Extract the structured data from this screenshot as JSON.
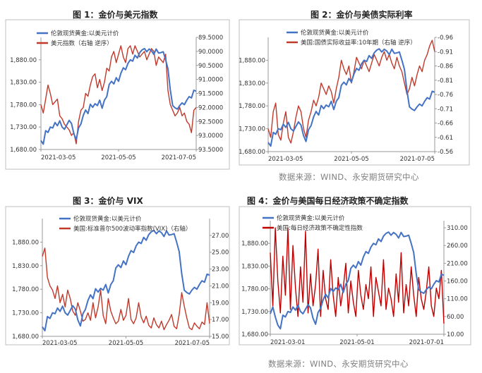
{
  "chart_data": [
    {
      "type": "line",
      "title": "图 1：金价与美元指数",
      "x_ticks": [
        "2021-03-05",
        "2021-05-05",
        "2021-07-05"
      ],
      "y_left": {
        "min": 1680,
        "max": 1930,
        "ticks": [
          "1,680.00",
          "1,730.00",
          "1,780.00",
          "1,830.00",
          "1,880.00"
        ],
        "tick_values": [
          1680,
          1730,
          1780,
          1830,
          1880
        ]
      },
      "y_right": {
        "min": 89.5,
        "max": 93.5,
        "reversed": true,
        "ticks": [
          "89.5000",
          "90.0000",
          "90.5000",
          "91.0000",
          "91.5000",
          "92.0000",
          "92.5000",
          "93.0000",
          "93.5000"
        ],
        "tick_values": [
          89.5,
          90.0,
          90.5,
          91.0,
          91.5,
          92.0,
          92.5,
          93.0,
          93.5
        ]
      },
      "legend": "top-left",
      "series": [
        {
          "name": "伦敦现货黄金:以美元计价",
          "axis": "left",
          "color": "#4472c4",
          "values": [
            1700,
            1692,
            1722,
            1718,
            1730,
            1728,
            1740,
            1733,
            1744,
            1730,
            1725,
            1735,
            1745,
            1738,
            1715,
            1702,
            1728,
            1737,
            1756,
            1768,
            1760,
            1781,
            1774,
            1782,
            1778,
            1790,
            1772,
            1790,
            1798,
            1825,
            1832,
            1826,
            1840,
            1832,
            1850,
            1862,
            1858,
            1872,
            1880,
            1877,
            1890,
            1884,
            1896,
            1902,
            1905,
            1898,
            1904,
            1900,
            1892,
            1904,
            1895,
            1896,
            1898,
            1880,
            1860,
            1813,
            1778,
            1773,
            1770,
            1778,
            1784,
            1780,
            1790,
            1798,
            1795,
            1812,
            1810
          ]
        },
        {
          "name": "美元指数（右轴 逆序）",
          "axis": "right",
          "color": "#c0392b",
          "values": [
            91.9,
            92.2,
            91.7,
            91.2,
            91.5,
            91.9,
            91.8,
            91.7,
            92.3,
            92.4,
            92.6,
            92.7,
            92.8,
            93.0,
            92.9,
            93.3,
            92.5,
            92.1,
            92.0,
            91.5,
            91.6,
            91.2,
            90.9,
            90.8,
            91.3,
            91.0,
            91.4,
            91.1,
            90.6,
            90.7,
            90.2,
            90.0,
            90.4,
            90.1,
            89.8,
            90.2,
            90.4,
            89.9,
            89.8,
            90.1,
            89.8,
            90.0,
            90.2,
            90.1,
            90.0,
            90.3,
            90.1,
            89.9,
            90.0,
            90.5,
            90.2,
            90.3,
            90.4,
            90.1,
            91.4,
            91.9,
            92.1,
            92.3,
            92.2,
            92.0,
            92.3,
            92.2,
            92.5,
            92.6,
            92.9,
            92.1,
            92.0
          ]
        }
      ]
    },
    {
      "type": "line",
      "title": "图 2：金价与美债实际利率",
      "x_ticks": [
        "2021-03-05",
        "2021-05-05",
        "2021-07-05"
      ],
      "y_left": {
        "min": 1680,
        "max": 1930,
        "ticks": [
          "1,680.00",
          "1,730.00",
          "1,780.00",
          "1,830.00",
          "1,880.00"
        ],
        "tick_values": [
          1680,
          1730,
          1780,
          1830,
          1880
        ]
      },
      "y_right": {
        "min": -0.96,
        "max": -0.56,
        "reversed": true,
        "ticks": [
          "-0.96",
          "-0.91",
          "-0.86",
          "-0.81",
          "-0.76",
          "-0.71",
          "-0.66",
          "-0.61",
          "-0.56"
        ],
        "tick_values": [
          -0.96,
          -0.91,
          -0.86,
          -0.81,
          -0.76,
          -0.71,
          -0.66,
          -0.61,
          -0.56
        ]
      },
      "legend": "top-left",
      "series": [
        {
          "name": "伦敦现货黄金:以美元计价",
          "axis": "left",
          "color": "#4472c4",
          "values": [
            1700,
            1692,
            1722,
            1718,
            1730,
            1728,
            1740,
            1733,
            1744,
            1730,
            1725,
            1735,
            1745,
            1738,
            1715,
            1702,
            1728,
            1737,
            1756,
            1768,
            1760,
            1781,
            1774,
            1782,
            1778,
            1790,
            1772,
            1790,
            1798,
            1825,
            1832,
            1826,
            1840,
            1832,
            1850,
            1862,
            1858,
            1872,
            1880,
            1877,
            1890,
            1884,
            1896,
            1902,
            1905,
            1898,
            1904,
            1900,
            1892,
            1904,
            1895,
            1896,
            1898,
            1880,
            1860,
            1813,
            1778,
            1773,
            1770,
            1778,
            1784,
            1780,
            1790,
            1798,
            1795,
            1812,
            1810
          ]
        },
        {
          "name": "美国:国债实际收益率:10年期（右轴 逆序）",
          "axis": "right",
          "color": "#c0392b",
          "values": [
            -0.64,
            -0.61,
            -0.7,
            -0.73,
            -0.62,
            -0.6,
            -0.66,
            -0.7,
            -0.61,
            -0.59,
            -0.63,
            -0.68,
            -0.72,
            -0.7,
            -0.64,
            -0.61,
            -0.67,
            -0.7,
            -0.74,
            -0.72,
            -0.75,
            -0.8,
            -0.78,
            -0.76,
            -0.79,
            -0.77,
            -0.73,
            -0.78,
            -0.82,
            -0.88,
            -0.85,
            -0.83,
            -0.86,
            -0.8,
            -0.84,
            -0.89,
            -0.87,
            -0.85,
            -0.88,
            -0.86,
            -0.84,
            -0.87,
            -0.9,
            -0.88,
            -0.86,
            -0.89,
            -0.91,
            -0.88,
            -0.9,
            -0.87,
            -0.85,
            -0.89,
            -0.86,
            -0.84,
            -0.8,
            -0.76,
            -0.78,
            -0.82,
            -0.79,
            -0.83,
            -0.86,
            -0.84,
            -0.88,
            -0.9,
            -0.93,
            -0.95,
            -0.91
          ]
        }
      ]
    },
    {
      "type": "line",
      "title": "图 3：金价与 VIX",
      "x_ticks": [
        "2021-03-05",
        "2021-05-05",
        "2021-07-05"
      ],
      "y_left": {
        "min": 1680,
        "max": 1930,
        "ticks": [
          "1,680.00",
          "1,730.00",
          "1,780.00",
          "1,830.00",
          "1,880.00"
        ],
        "tick_values": [
          1680,
          1730,
          1780,
          1830,
          1880
        ]
      },
      "y_right": {
        "min": 15,
        "max": 29,
        "reversed": false,
        "ticks": [
          "15.00",
          "17.00",
          "19.00",
          "21.00",
          "23.00",
          "25.00",
          "27.00"
        ],
        "tick_values": [
          15,
          17,
          19,
          21,
          23,
          25,
          27
        ]
      },
      "legend": "top-right",
      "series": [
        {
          "name": "伦敦现货黄金:以美元计价",
          "axis": "left",
          "color": "#4472c4",
          "values": [
            1700,
            1692,
            1722,
            1718,
            1730,
            1728,
            1740,
            1733,
            1744,
            1730,
            1725,
            1735,
            1745,
            1738,
            1715,
            1702,
            1728,
            1737,
            1756,
            1768,
            1760,
            1781,
            1774,
            1782,
            1778,
            1790,
            1772,
            1790,
            1798,
            1825,
            1832,
            1826,
            1840,
            1832,
            1850,
            1862,
            1858,
            1872,
            1880,
            1877,
            1890,
            1884,
            1896,
            1902,
            1905,
            1898,
            1904,
            1900,
            1892,
            1904,
            1895,
            1896,
            1898,
            1880,
            1860,
            1813,
            1778,
            1773,
            1770,
            1778,
            1784,
            1780,
            1790,
            1798,
            1795,
            1812,
            1810
          ]
        },
        {
          "name": "美国:标准普尔500波动率指数(VIX)（右轴）",
          "axis": "right",
          "color": "#c0392b",
          "values": [
            24.5,
            25.5,
            22.0,
            21.0,
            20.5,
            19.5,
            21.0,
            19.0,
            20.0,
            18.5,
            20.5,
            19.5,
            18.0,
            17.5,
            19.0,
            18.0,
            16.8,
            17.0,
            17.8,
            16.9,
            19.0,
            17.2,
            18.5,
            20.5,
            17.5,
            16.5,
            19.5,
            18.0,
            17.2,
            16.5,
            16.8,
            18.2,
            16.9,
            17.5,
            19.5,
            17.0,
            16.5,
            17.2,
            19.0,
            17.3,
            16.6,
            17.4,
            16.3,
            16.0,
            17.2,
            16.4,
            16.0,
            16.8,
            15.8,
            16.4,
            16.9,
            17.6,
            16.2,
            15.9,
            17.6,
            20.2,
            18.6,
            17.2,
            16.0,
            15.8,
            16.6,
            16.2,
            15.9,
            16.7,
            16.4,
            19.0,
            16.5
          ]
        }
      ]
    },
    {
      "type": "line",
      "title": "图 4：金价与美国每日经济政策不确定指数",
      "x_ticks": [
        "2021-03-01",
        "2021-05-01",
        "2021-07-01"
      ],
      "y_left": {
        "min": 1680,
        "max": 1930,
        "ticks": [
          "1,680.00",
          "1,730.00",
          "1,780.00",
          "1,830.00",
          "1,880.00"
        ],
        "tick_values": [
          1680,
          1730,
          1780,
          1830,
          1880
        ]
      },
      "y_right": {
        "min": 10,
        "max": 330,
        "reversed": false,
        "ticks": [
          "10.00",
          "60.00",
          "110.00",
          "160.00",
          "210.00",
          "260.00",
          "310.00"
        ],
        "tick_values": [
          10,
          60,
          110,
          160,
          210,
          260,
          310
        ]
      },
      "legend": "top-right",
      "series": [
        {
          "name": "伦敦现货黄金:以美元计价",
          "axis": "left",
          "color": "#4472c4",
          "values": [
            1725,
            1740,
            1718,
            1700,
            1692,
            1722,
            1718,
            1730,
            1728,
            1740,
            1733,
            1744,
            1730,
            1725,
            1735,
            1745,
            1738,
            1715,
            1702,
            1728,
            1737,
            1756,
            1768,
            1760,
            1781,
            1774,
            1782,
            1778,
            1790,
            1772,
            1790,
            1798,
            1825,
            1832,
            1826,
            1840,
            1832,
            1850,
            1862,
            1858,
            1872,
            1880,
            1877,
            1890,
            1884,
            1896,
            1902,
            1905,
            1898,
            1904,
            1900,
            1892,
            1904,
            1895,
            1896,
            1898,
            1880,
            1860,
            1813,
            1778,
            1773,
            1770,
            1778,
            1784,
            1780,
            1790,
            1798,
            1795,
            1812,
            1810
          ]
        },
        {
          "name": "美国:每日经济政策不确定性指数",
          "axis": "right",
          "color": "#c00000",
          "values": [
            240,
            90,
            310,
            160,
            70,
            230,
            120,
            310,
            80,
            260,
            140,
            60,
            200,
            100,
            300,
            70,
            180,
            90,
            150,
            250,
            60,
            190,
            110,
            80,
            220,
            120,
            60,
            170,
            90,
            140,
            210,
            70,
            160,
            100,
            60,
            190,
            120,
            80,
            150,
            110,
            200,
            60,
            170,
            130,
            90,
            220,
            80,
            140,
            110,
            60,
            180,
            100,
            240,
            70,
            150,
            90,
            200,
            120,
            60,
            170,
            110,
            80,
            130,
            200,
            90,
            60,
            140,
            110,
            190,
            40
          ]
        }
      ]
    }
  ],
  "panels": [
    {
      "legend": [
        "伦敦现货黄金:以美元计价",
        "美元指数（右轴 逆序）"
      ]
    },
    {
      "legend": [
        "伦敦现货黄金:以美元计价",
        "美国:国债实际收益率:10年期（右轴 逆序）"
      ]
    },
    {
      "legend": [
        "伦敦现货黄金:以美元计价",
        "美国:标准普尔500波动率指数(VIX)（右轴）"
      ]
    },
    {
      "legend": [
        "伦敦现货黄金:以美元计价",
        "美国:每日经济政策不确定性指数"
      ]
    }
  ],
  "sources": [
    "数据来源：WIND、永安期货研究中心",
    "数据来源：WIND、永安期货研究中心"
  ],
  "colors": {
    "gold": "#4472c4",
    "red": "#c0392b",
    "axis": "#999999",
    "frame": "#bfbfbf"
  }
}
